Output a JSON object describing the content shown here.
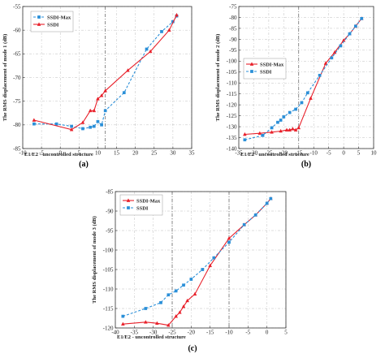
{
  "colors": {
    "series_a": "#e8202a",
    "series_b": "#2a8fd8"
  },
  "chart_data": [
    {
      "type": "line",
      "panel_label": "(a)",
      "ylabel": "The RMS displacement of mode 1 (dB)",
      "xlabel": "E1/E2 - uncontrolled structure",
      "xlim": [
        -10,
        35
      ],
      "ylim": [
        -85,
        -55
      ],
      "xticks": [
        -10,
        -5,
        0,
        5,
        10,
        15,
        20,
        25,
        30,
        35
      ],
      "yticks": [
        -85,
        -80,
        -75,
        -70,
        -65,
        -60,
        -55
      ],
      "xtick_labels": [
        "-10",
        "-5",
        "0",
        "5",
        "10",
        "15",
        "20",
        "25",
        "30",
        "35"
      ],
      "ytick_labels": [
        "-85",
        "-80",
        "-75",
        "-70",
        "-65",
        "-60",
        "-55"
      ],
      "grid_x": [
        12
      ],
      "legend_position": "top-left",
      "series": [
        {
          "name": "SSDI-Max",
          "color": "#2a8fd8",
          "dashed": true,
          "marker": "square",
          "x": [
            -7,
            -1,
            3,
            6,
            8,
            9,
            10,
            11,
            12,
            17,
            23,
            27,
            30,
            31
          ],
          "y": [
            -79.8,
            -79.8,
            -80.3,
            -80.8,
            -80.5,
            -80.3,
            -79.3,
            -80.0,
            -77.0,
            -73.2,
            -64.0,
            -60.3,
            -58.2,
            -57.0
          ]
        },
        {
          "name": "SSDI",
          "color": "#e8202a",
          "dashed": false,
          "marker": "triangle",
          "x": [
            -7,
            3,
            6,
            8,
            9,
            10,
            11,
            12,
            18,
            24,
            29,
            31
          ],
          "y": [
            -79.0,
            -81.0,
            -79.5,
            -77.0,
            -77.0,
            -74.5,
            -73.8,
            -72.8,
            -68.5,
            -64.5,
            -60.0,
            -56.8
          ]
        }
      ]
    },
    {
      "type": "line",
      "panel_label": "(b)",
      "ylabel": "The RMS displacement of mode 2 (dB)",
      "xlabel": "E1/E2 - uncontrolled structure",
      "xlim": [
        -35,
        10
      ],
      "ylim": [
        -140,
        -75
      ],
      "xticks": [
        -35,
        -30,
        -25,
        -20,
        -15,
        -10,
        -5,
        0,
        5,
        10
      ],
      "yticks": [
        -140,
        -135,
        -130,
        -125,
        -120,
        -115,
        -110,
        -105,
        -100,
        -95,
        -90,
        -85,
        -80,
        -75
      ],
      "xtick_labels": [
        "-35",
        "-30",
        "-25",
        "-20",
        "-15",
        "-10",
        "-5",
        "0",
        "5",
        "10"
      ],
      "ytick_labels": [
        "-140",
        "-135",
        "-130",
        "-125",
        "-120",
        "-115",
        "-110",
        "-105",
        "-100",
        "-95",
        "-90",
        "-85",
        "-80",
        "-75"
      ],
      "grid_x": [
        -15
      ],
      "legend_position": "middle-left",
      "series": [
        {
          "name": "SSDI-Max",
          "color": "#e8202a",
          "dashed": false,
          "marker": "triangle",
          "x": [
            -33,
            -28,
            -24,
            -21,
            -19,
            -18,
            -17,
            -16,
            -15,
            -11,
            -6,
            -3,
            0,
            2,
            4,
            6
          ],
          "y": [
            -133.5,
            -133.0,
            -132.5,
            -132.0,
            -131.5,
            -131.5,
            -131.0,
            -131.5,
            -130.5,
            -117.0,
            -101.0,
            -96.0,
            -90.5,
            -87.5,
            -84.0,
            -80.5
          ]
        },
        {
          "name": "SSDI",
          "color": "#2a8fd8",
          "dashed": true,
          "marker": "square",
          "x": [
            -33,
            -27,
            -24,
            -22,
            -21,
            -20,
            -18,
            -16,
            -14,
            -12,
            -8,
            -4,
            -1,
            2,
            4,
            6
          ],
          "y": [
            -136.0,
            -134.0,
            -130.5,
            -128.0,
            -127.0,
            -125.5,
            -123.5,
            -122.0,
            -119.0,
            -114.5,
            -106.5,
            -98.5,
            -93.0,
            -87.5,
            -84.0,
            -80.5
          ]
        }
      ]
    },
    {
      "type": "line",
      "panel_label": "(c)",
      "ylabel": "The RMS displacement of mode 3 (dB)",
      "xlabel": "E1/E2 - uncontrolled structure",
      "xlim": [
        -40,
        5
      ],
      "ylim": [
        -120,
        -85
      ],
      "xticks": [
        -40,
        -35,
        -30,
        -25,
        -20,
        -15,
        -10,
        -5,
        0,
        5
      ],
      "yticks": [
        -120,
        -115,
        -110,
        -105,
        -100,
        -95,
        -90,
        -85
      ],
      "xtick_labels": [
        "-40",
        "-35",
        "-30",
        "-25",
        "-20",
        "-15",
        "-10",
        "-5",
        "0",
        "5"
      ],
      "ytick_labels": [
        "-120",
        "-115",
        "-110",
        "-105",
        "-100",
        "-95",
        "-90",
        "-85"
      ],
      "grid_x": [
        -25,
        -10
      ],
      "legend_position": "top-left",
      "series": [
        {
          "name": "SSDI-Max",
          "color": "#e8202a",
          "dashed": false,
          "marker": "triangle",
          "x": [
            -38,
            -32,
            -29,
            -26,
            -24,
            -23,
            -22,
            -21,
            -19,
            -15,
            -10,
            -6,
            -3,
            0,
            1
          ],
          "y": [
            -119.0,
            -118.5,
            -118.8,
            -119.3,
            -117.0,
            -116.0,
            -114.5,
            -113.0,
            -111.3,
            -104.0,
            -97.0,
            -93.5,
            -91.0,
            -88.0,
            -86.8
          ]
        },
        {
          "name": "SSDI",
          "color": "#2a8fd8",
          "dashed": true,
          "marker": "square",
          "x": [
            -38,
            -32,
            -28,
            -26,
            -24,
            -22,
            -20,
            -17,
            -14,
            -10,
            -6,
            -3,
            0,
            1
          ],
          "y": [
            -117.0,
            -115.0,
            -113.5,
            -111.5,
            -110.5,
            -109.0,
            -107.5,
            -105.0,
            -102.0,
            -98.0,
            -93.5,
            -91.0,
            -88.0,
            -86.8
          ]
        }
      ]
    }
  ]
}
